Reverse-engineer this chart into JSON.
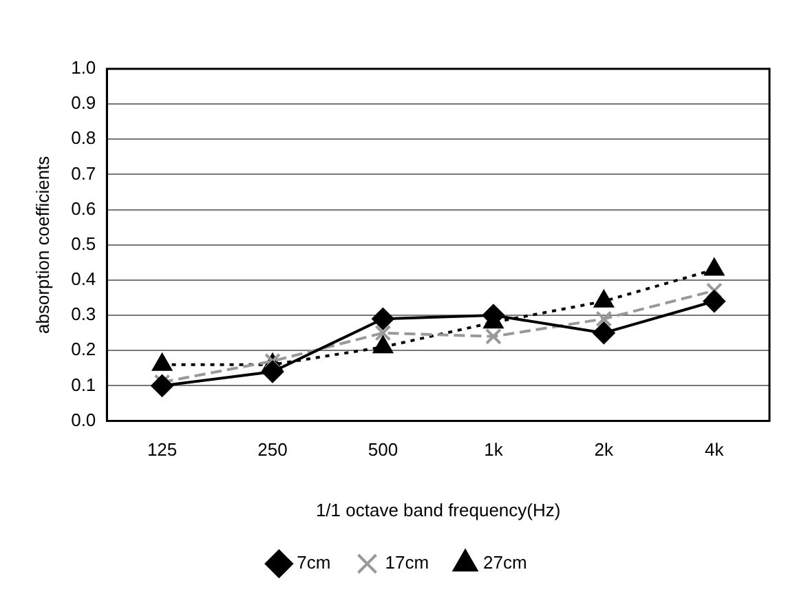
{
  "chart_data": {
    "type": "line",
    "xlabel": "1/1 octave band frequency(Hz)",
    "ylabel": "absorption coefficients",
    "categories": [
      "125",
      "250",
      "500",
      "1k",
      "2k",
      "4k"
    ],
    "ylim": [
      0,
      1
    ],
    "yticks": [
      {
        "value": 0,
        "label": "0.0"
      },
      0.1,
      0.2,
      0.3,
      0.4,
      0.5,
      0.6,
      0.7,
      0.8,
      0.9,
      {
        "value": 1,
        "label": "1.0"
      }
    ],
    "grid": "y",
    "legend": "bottom",
    "series": [
      {
        "name": "7cm",
        "color": "#000000",
        "marker": "diamond",
        "line_style": "solid",
        "values": [
          0.1,
          0.14,
          0.29,
          0.3,
          0.25,
          0.34
        ]
      },
      {
        "name": "17cm",
        "color": "#999999",
        "marker": "cross",
        "line_style": "dashed",
        "values": [
          0.11,
          0.17,
          0.25,
          0.24,
          0.29,
          0.37
        ]
      },
      {
        "name": "27cm",
        "color": "#000000",
        "marker": "triangle",
        "line_style": "dotted",
        "values": [
          0.16,
          0.16,
          0.21,
          0.28,
          0.34,
          0.43
        ]
      }
    ]
  }
}
